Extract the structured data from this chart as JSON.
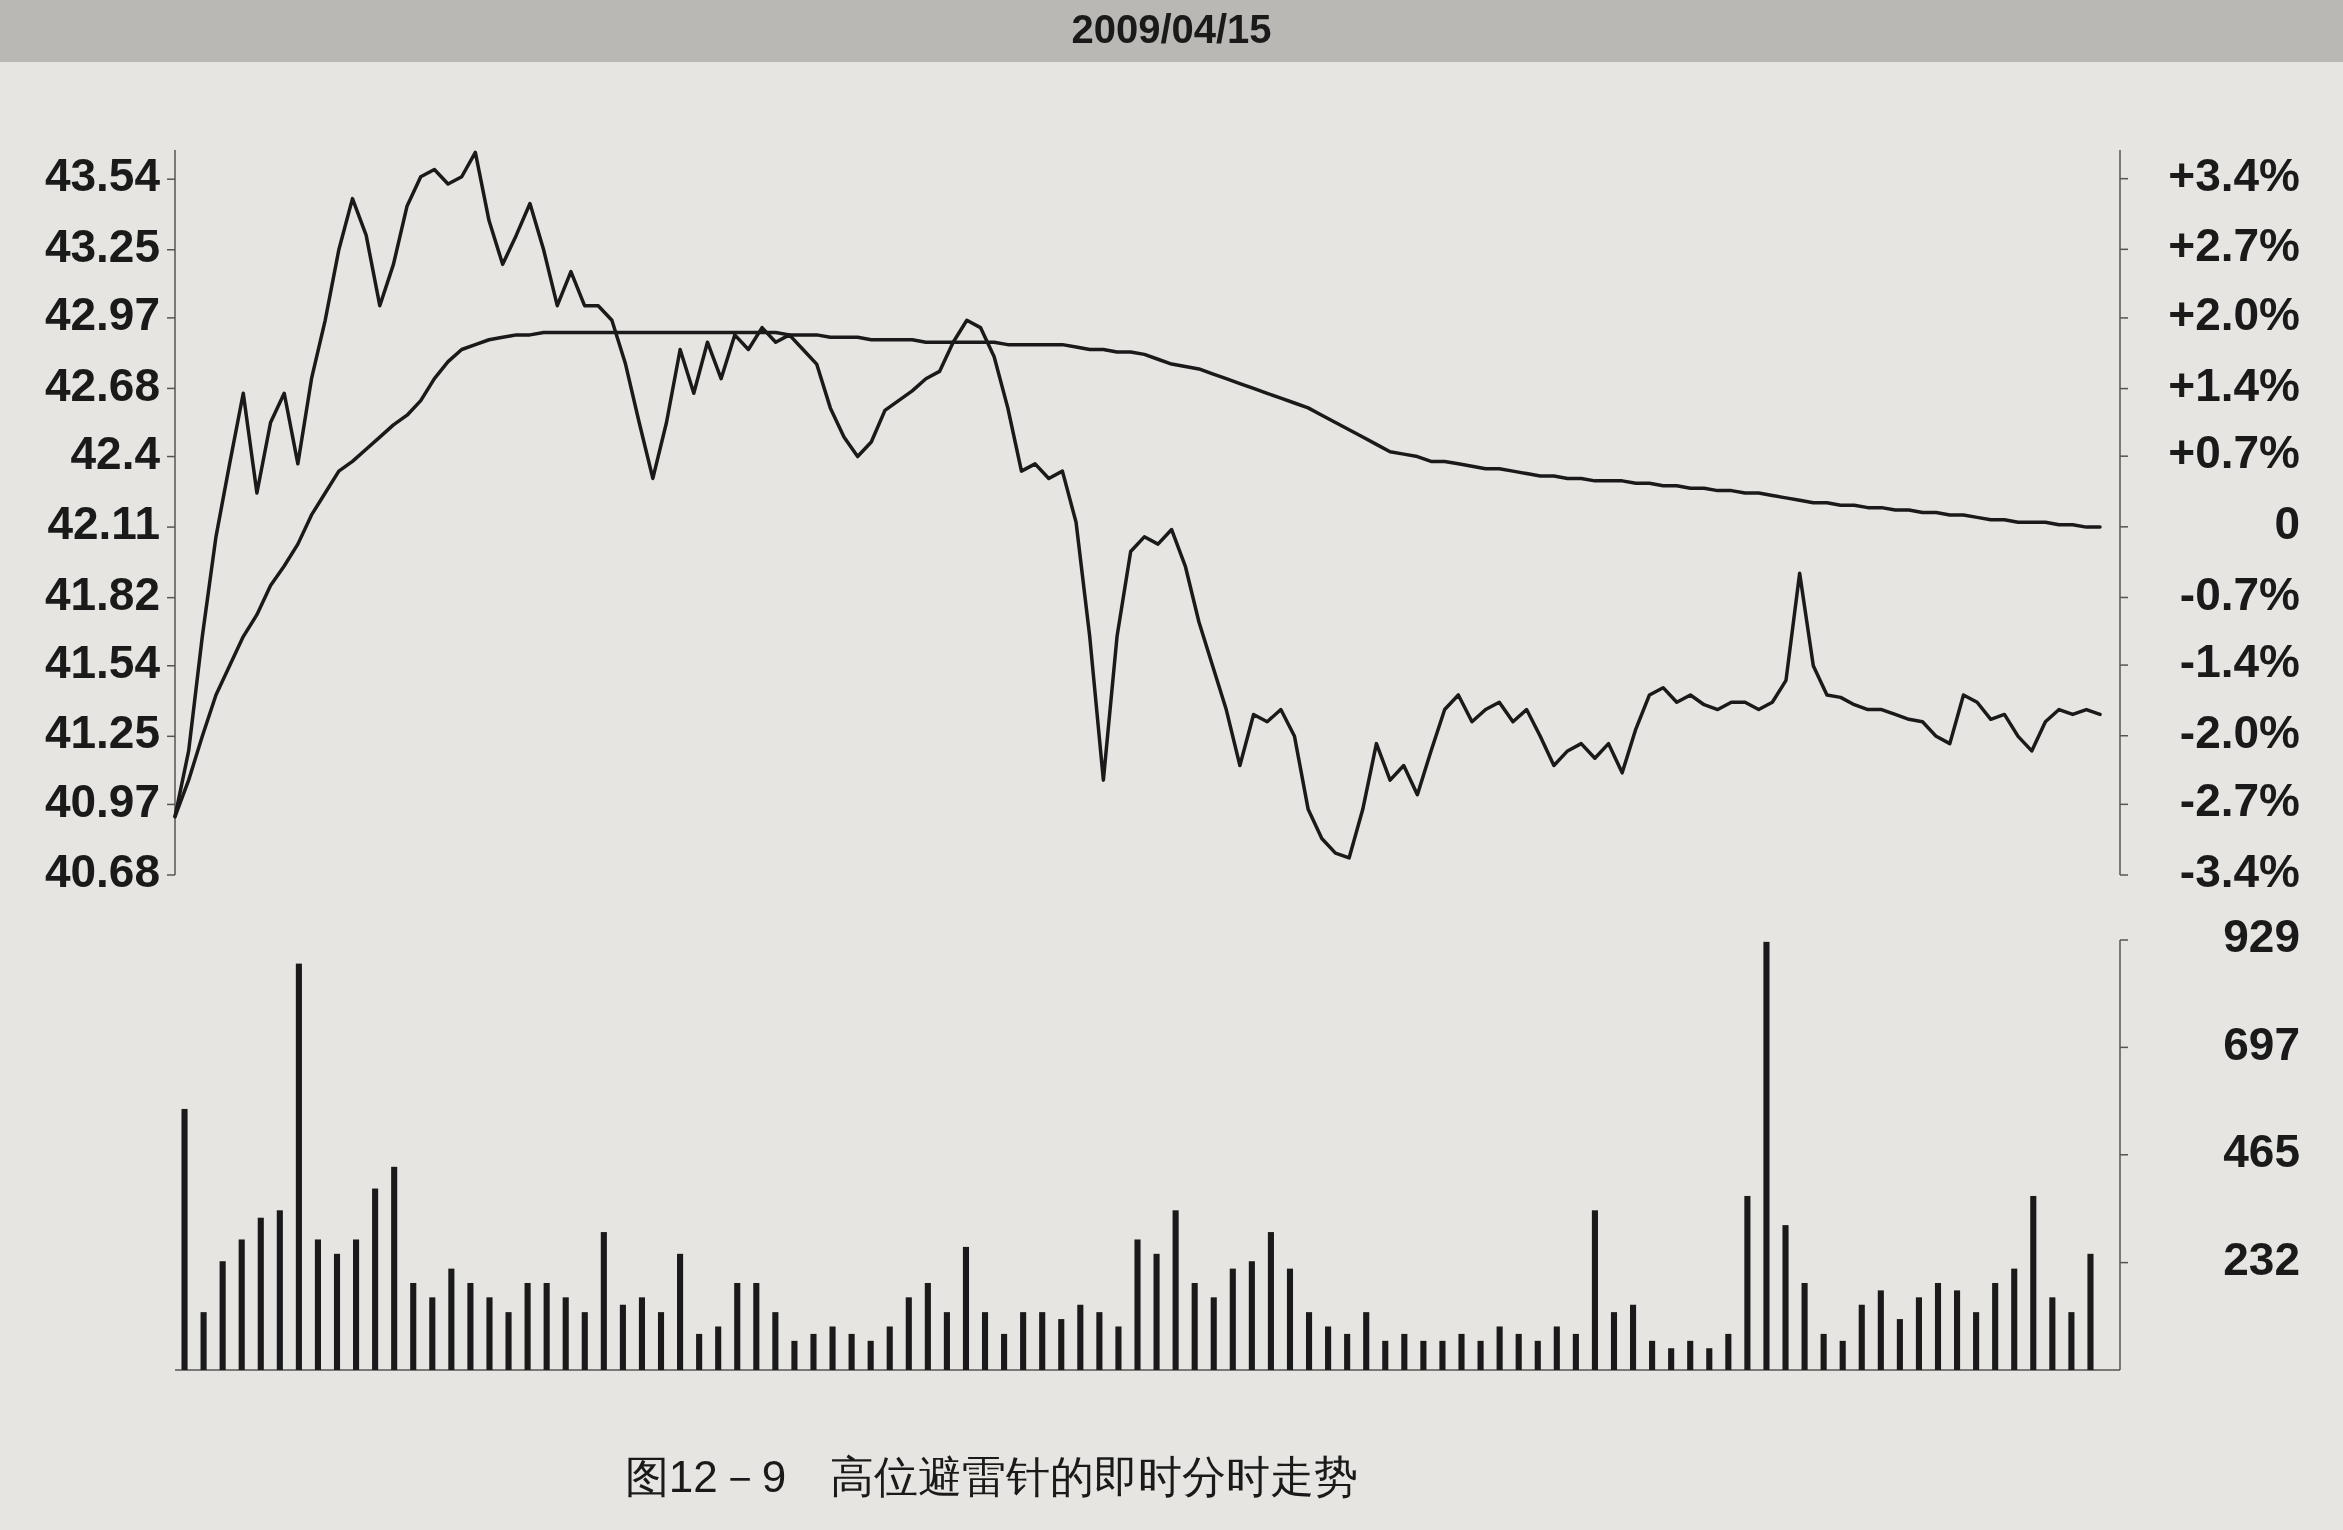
{
  "chart_data": [
    {
      "type": "line",
      "title": "2009/04/15",
      "categories": [
        null,
        null,
        null,
        null,
        null,
        null,
        null,
        null,
        null,
        null,
        null,
        null,
        null,
        null,
        null,
        null,
        null,
        null,
        null,
        null,
        null,
        null,
        null,
        null,
        null,
        null,
        null,
        null,
        null,
        null,
        null,
        null,
        null,
        null,
        null,
        null,
        null,
        null,
        null,
        null,
        null,
        null,
        null,
        null,
        null,
        null,
        null,
        null,
        null,
        null,
        null,
        null,
        null,
        null,
        null,
        null,
        null,
        null,
        null,
        null,
        null,
        null,
        null,
        null,
        null,
        null,
        null,
        null,
        null,
        null,
        null,
        null,
        null,
        null,
        null,
        null,
        null,
        null,
        null,
        null,
        null,
        null,
        null,
        null,
        null,
        null,
        null,
        null,
        null,
        null,
        null,
        null,
        null,
        null,
        null,
        null,
        null,
        null,
        null,
        null,
        null,
        null,
        null,
        null,
        null,
        null,
        null,
        null,
        null,
        null,
        null,
        null,
        null,
        null,
        null,
        null,
        null,
        null,
        null,
        null,
        null,
        null,
        null,
        null,
        null,
        null,
        null,
        null,
        null,
        null,
        null,
        null,
        null,
        null,
        null,
        null,
        null,
        null,
        null,
        null,
        null,
        null
      ],
      "ylim": [
        40.68,
        43.66
      ],
      "yticks": [
        40.68,
        40.97,
        41.25,
        41.54,
        41.82,
        42.11,
        42.4,
        42.68,
        42.97,
        43.25,
        43.54
      ],
      "y2lim": [
        -3.4,
        3.68
      ],
      "y2ticks": [
        {
          "value": -3.4,
          "label": "-3.4%"
        },
        {
          "value": -2.71,
          "label": "-2.7%"
        },
        {
          "value": -2.04,
          "label": "-2.0%"
        },
        {
          "value": -1.35,
          "label": "-1.4%"
        },
        {
          "value": -0.69,
          "label": "-0.7%"
        },
        {
          "value": 0,
          "label": "0"
        },
        {
          "value": 0.69,
          "label": "+0.7%"
        },
        {
          "value": 1.35,
          "label": "+1.4%"
        },
        {
          "value": 2.04,
          "label": "+2.0%"
        },
        {
          "value": 2.71,
          "label": "+2.7%"
        },
        {
          "value": 3.4,
          "label": "+3.4%"
        }
      ],
      "series": [
        {
          "color": "#1a1a1a",
          "values": [
            40.92,
            41.19,
            41.66,
            42.07,
            42.37,
            42.66,
            42.25,
            42.54,
            42.66,
            42.37,
            42.72,
            42.96,
            43.25,
            43.46,
            43.31,
            43.02,
            43.19,
            43.43,
            43.55,
            43.58,
            43.52,
            43.55,
            43.65,
            43.37,
            43.19,
            43.31,
            43.44,
            43.25,
            43.02,
            43.16,
            43.02,
            43.02,
            42.96,
            42.78,
            42.54,
            42.31,
            42.54,
            42.84,
            42.66,
            42.87,
            42.72,
            42.9,
            42.84,
            42.93,
            42.87,
            42.9,
            42.84,
            42.78,
            42.6,
            42.48,
            42.4,
            42.46,
            42.59,
            42.63,
            42.67,
            42.72,
            42.75,
            42.87,
            42.96,
            42.93,
            42.81,
            42.6,
            42.34,
            42.37,
            42.31,
            42.34,
            42.13,
            41.66,
            41.07,
            41.66,
            42.01,
            42.07,
            42.04,
            42.1,
            41.95,
            41.72,
            41.54,
            41.36,
            41.13,
            41.34,
            41.31,
            41.36,
            41.25,
            40.95,
            40.83,
            40.77,
            40.75,
            40.95,
            41.22,
            41.07,
            41.13,
            41.01,
            41.19,
            41.36,
            41.42,
            41.31,
            41.36,
            41.39,
            41.31,
            41.36,
            41.25,
            41.13,
            41.19,
            41.22,
            41.16,
            41.22,
            41.1,
            41.28,
            41.42,
            41.45,
            41.39,
            41.42,
            41.38,
            41.36,
            41.39,
            41.39,
            41.36,
            41.39,
            41.48,
            41.92,
            41.54,
            41.42,
            41.41,
            41.38,
            41.36,
            41.36,
            41.34,
            41.32,
            41.31,
            41.25,
            41.22,
            41.42,
            41.39,
            41.32,
            41.34,
            41.25,
            41.19,
            41.31,
            41.36,
            41.34,
            41.36,
            41.34
          ]
        },
        {
          "color": "#1a1a1a",
          "values": [
            40.92,
            41.07,
            41.25,
            41.42,
            41.54,
            41.66,
            41.75,
            41.87,
            41.95,
            42.04,
            42.16,
            42.25,
            42.34,
            42.38,
            42.43,
            42.48,
            42.53,
            42.57,
            42.63,
            42.72,
            42.79,
            42.84,
            42.86,
            42.88,
            42.89,
            42.9,
            42.9,
            42.91,
            42.91,
            42.91,
            42.91,
            42.91,
            42.91,
            42.91,
            42.91,
            42.91,
            42.91,
            42.91,
            42.91,
            42.91,
            42.91,
            42.91,
            42.91,
            42.91,
            42.91,
            42.9,
            42.9,
            42.9,
            42.89,
            42.89,
            42.89,
            42.88,
            42.88,
            42.88,
            42.88,
            42.87,
            42.87,
            42.87,
            42.87,
            42.87,
            42.87,
            42.86,
            42.86,
            42.86,
            42.86,
            42.86,
            42.85,
            42.84,
            42.84,
            42.83,
            42.83,
            42.82,
            42.8,
            42.78,
            42.77,
            42.76,
            42.74,
            42.72,
            42.7,
            42.68,
            42.66,
            42.64,
            42.62,
            42.6,
            42.57,
            42.54,
            42.51,
            42.48,
            42.45,
            42.42,
            42.41,
            42.4,
            42.38,
            42.38,
            42.37,
            42.36,
            42.35,
            42.35,
            42.34,
            42.33,
            42.32,
            42.32,
            42.31,
            42.31,
            42.3,
            42.3,
            42.3,
            42.29,
            42.29,
            42.28,
            42.28,
            42.27,
            42.27,
            42.26,
            42.26,
            42.25,
            42.25,
            42.24,
            42.23,
            42.22,
            42.21,
            42.21,
            42.2,
            42.2,
            42.19,
            42.19,
            42.18,
            42.18,
            42.17,
            42.17,
            42.16,
            42.16,
            42.15,
            42.14,
            42.14,
            42.13,
            42.13,
            42.13,
            42.12,
            42.12,
            42.11,
            42.11
          ]
        }
      ]
    },
    {
      "type": "bar",
      "categories": [
        null,
        null,
        null,
        null,
        null,
        null,
        null,
        null,
        null,
        null,
        null,
        null,
        null,
        null,
        null,
        null,
        null,
        null,
        null,
        null,
        null,
        null,
        null,
        null,
        null,
        null,
        null,
        null,
        null,
        null,
        null,
        null,
        null,
        null,
        null,
        null,
        null,
        null,
        null,
        null,
        null,
        null,
        null,
        null,
        null,
        null,
        null,
        null,
        null,
        null,
        null,
        null,
        null,
        null,
        null,
        null,
        null,
        null,
        null,
        null,
        null,
        null,
        null,
        null,
        null,
        null,
        null,
        null,
        null,
        null,
        null,
        null,
        null,
        null,
        null,
        null,
        null,
        null,
        null,
        null,
        null,
        null,
        null,
        null,
        null,
        null,
        null,
        null,
        null,
        null,
        null,
        null,
        null,
        null,
        null,
        null,
        null,
        null,
        null,
        null,
        null
      ],
      "ylim": [
        0,
        929
      ],
      "yticks": [
        232,
        465,
        697,
        929
      ],
      "series": [
        {
          "color": "#1a1a1a",
          "values": [
            564,
            125,
            235,
            282,
            329,
            345,
            878,
            282,
            251,
            282,
            392,
            439,
            188,
            157,
            219,
            188,
            157,
            125,
            188,
            188,
            157,
            125,
            298,
            141,
            157,
            125,
            251,
            78,
            94,
            188,
            188,
            125,
            63,
            78,
            94,
            78,
            63,
            94,
            157,
            188,
            125,
            266,
            125,
            78,
            125,
            125,
            110,
            141,
            125,
            94,
            282,
            251,
            345,
            188,
            157,
            219,
            235,
            298,
            219,
            125,
            94,
            78,
            125,
            63,
            78,
            63,
            63,
            78,
            63,
            94,
            78,
            63,
            94,
            78,
            345,
            125,
            141,
            63,
            47,
            63,
            47,
            78,
            376,
            925,
            313,
            188,
            78,
            63,
            141,
            172,
            110,
            157,
            188,
            172,
            125,
            188,
            219,
            376,
            157,
            125,
            251
          ]
        }
      ],
      "annotations": [
        "图12－9　高位避雷针的即时分时走势"
      ]
    }
  ]
}
